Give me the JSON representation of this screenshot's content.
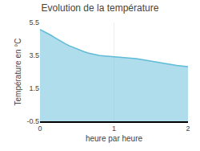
{
  "chart_data": {
    "type": "area",
    "title": "Evolution de la température",
    "x_label": "heure par heure",
    "y_label": "Température en °C",
    "x": [
      0.0,
      0.05,
      0.1,
      0.15,
      0.2,
      0.25,
      0.3,
      0.35,
      0.4,
      0.45,
      0.5,
      0.55,
      0.6,
      0.65,
      0.7,
      0.75,
      0.8,
      0.85,
      0.9,
      0.95,
      1.0,
      1.05,
      1.1,
      1.15,
      1.2,
      1.25,
      1.3,
      1.35,
      1.4,
      1.45,
      1.5,
      1.55,
      1.6,
      1.65,
      1.7,
      1.75,
      1.8,
      1.85,
      1.9,
      1.95,
      2.0
    ],
    "values": [
      5.08,
      4.97,
      4.86,
      4.72,
      4.58,
      4.44,
      4.31,
      4.19,
      4.08,
      3.98,
      3.89,
      3.8,
      3.72,
      3.65,
      3.59,
      3.54,
      3.5,
      3.48,
      3.46,
      3.45,
      3.44,
      3.43,
      3.41,
      3.39,
      3.37,
      3.34,
      3.31,
      3.27,
      3.23,
      3.19,
      3.15,
      3.1,
      3.06,
      3.02,
      2.98,
      2.95,
      2.92,
      2.89,
      2.87,
      2.84,
      2.82
    ],
    "color": "#60bbd8",
    "xlim": [
      0,
      2
    ],
    "ylim": [
      -0.5,
      5.5
    ],
    "xticks": [
      0,
      1,
      2
    ],
    "yticks": [
      -0.5,
      1.5,
      3.5,
      5.5
    ],
    "grid": "x"
  }
}
